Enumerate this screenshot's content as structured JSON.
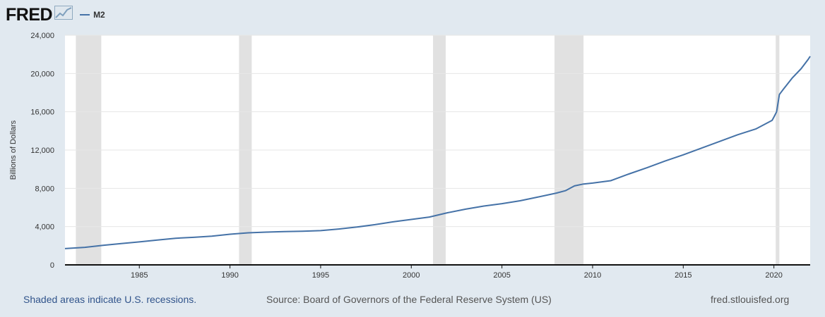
{
  "header": {
    "logo_text": "FRED",
    "logo_icon": "line-chart-icon",
    "legend_label": "M2"
  },
  "footer": {
    "recession_note": "Shaded areas indicate U.S. recessions.",
    "source": "Source: Board of Governors of the Federal Reserve System (US)",
    "site": "fred.stlouisfed.org"
  },
  "colors": {
    "background": "#e1e9f0",
    "plot_background": "#ffffff",
    "series": "#4572a7",
    "recession": "#e1e1e1",
    "link": "#31548b"
  },
  "chart_data": {
    "type": "line",
    "title": "",
    "xlabel": "",
    "ylabel": "Billions of Dollars",
    "xlim": [
      1980.9,
      2022.0
    ],
    "ylim": [
      0,
      24000
    ],
    "grid": true,
    "legend_position": "top-left",
    "x_ticks": [
      1985,
      1990,
      1995,
      2000,
      2005,
      2010,
      2015,
      2020
    ],
    "y_ticks": [
      {
        "value": 0,
        "label": "0"
      },
      {
        "value": 4000,
        "label": "4,000"
      },
      {
        "value": 8000,
        "label": "8,000"
      },
      {
        "value": 12000,
        "label": "12,000"
      },
      {
        "value": 16000,
        "label": "16,000"
      },
      {
        "value": 20000,
        "label": "20,000"
      },
      {
        "value": 24000,
        "label": "24,000"
      }
    ],
    "recessions": [
      {
        "start": 1981.5,
        "end": 1982.9
      },
      {
        "start": 1990.5,
        "end": 1991.2
      },
      {
        "start": 2001.2,
        "end": 2001.9
      },
      {
        "start": 2007.9,
        "end": 2009.5
      },
      {
        "start": 2020.1,
        "end": 2020.3
      }
    ],
    "series": [
      {
        "name": "M2",
        "x": [
          1980.9,
          1982.0,
          1983.0,
          1984.0,
          1985.0,
          1986.0,
          1987.0,
          1988.0,
          1989.0,
          1990.0,
          1991.0,
          1992.0,
          1993.0,
          1994.0,
          1995.0,
          1996.0,
          1997.0,
          1998.0,
          1999.0,
          2000.0,
          2001.0,
          2002.0,
          2003.0,
          2004.0,
          2005.0,
          2006.0,
          2007.0,
          2008.0,
          2008.5,
          2009.0,
          2009.5,
          2010.0,
          2011.0,
          2012.0,
          2013.0,
          2014.0,
          2015.0,
          2016.0,
          2017.0,
          2018.0,
          2019.0,
          2019.9,
          2020.0,
          2020.15,
          2020.3,
          2020.5,
          2021.0,
          2021.5,
          2021.9,
          2022.0
        ],
        "y": [
          1700,
          1830,
          2040,
          2230,
          2400,
          2600,
          2780,
          2880,
          3000,
          3200,
          3350,
          3420,
          3480,
          3520,
          3580,
          3750,
          3950,
          4200,
          4500,
          4750,
          5000,
          5450,
          5820,
          6150,
          6400,
          6700,
          7100,
          7500,
          7750,
          8250,
          8450,
          8550,
          8800,
          9500,
          10150,
          10850,
          11500,
          12200,
          12900,
          13600,
          14200,
          15100,
          15450,
          16000,
          17800,
          18300,
          19500,
          20500,
          21500,
          21800
        ]
      }
    ]
  }
}
